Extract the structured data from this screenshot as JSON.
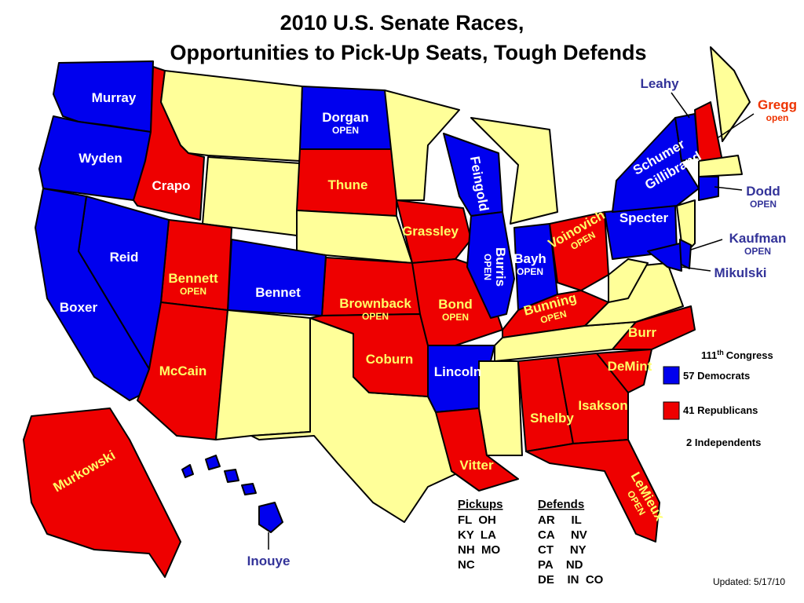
{
  "title": [
    "2010 U.S. Senate Races,",
    "Opportunities to Pick-Up Seats, Tough Defends"
  ],
  "labels": [
    {
      "text": "Murray"
    },
    {
      "text": "Wyden"
    },
    {
      "text": "Crapo"
    },
    {
      "text": "Reid"
    },
    {
      "text": "Boxer"
    },
    {
      "text": "Bennett",
      "sub": "OPEN"
    },
    {
      "text": "McCain"
    },
    {
      "text": "Bennet"
    },
    {
      "text": "Dorgan",
      "sub": "OPEN"
    },
    {
      "text": "Thune"
    },
    {
      "text": "Brownback",
      "sub": "OPEN"
    },
    {
      "text": "Coburn"
    },
    {
      "text": "Grassley"
    },
    {
      "text": "Bond",
      "sub": "OPEN"
    },
    {
      "text": "Lincoln"
    },
    {
      "text": "Vitter"
    },
    {
      "text": "Feingold"
    },
    {
      "text": "Burris",
      "sub": "OPEN"
    },
    {
      "text": "Bayh",
      "sub": "OPEN"
    },
    {
      "text": "Voinovich",
      "sub": "OPEN"
    },
    {
      "text": "Bunning",
      "sub": "OPEN"
    },
    {
      "text": "Shelby"
    },
    {
      "text": "Isakson"
    },
    {
      "text": "DeMint"
    },
    {
      "text": "Burr"
    },
    {
      "text": "LeMieux",
      "sub": "OPEN"
    },
    {
      "text": "Specter"
    },
    {
      "text": "Schumer"
    },
    {
      "text": "Gillibrand"
    },
    {
      "text": "Leahy"
    },
    {
      "text": "Gregg",
      "sub": "open"
    },
    {
      "text": "Dodd",
      "sub": "OPEN"
    },
    {
      "text": "Kaufman",
      "sub": "OPEN"
    },
    {
      "text": "Mikulski"
    },
    {
      "text": "Murkowski"
    },
    {
      "text": "Inouye"
    }
  ],
  "congress": {
    "number": "111",
    "sup": "th",
    "text": "Congress"
  },
  "legend": [
    "57 Democrats",
    "41 Republicans",
    "2 Independents"
  ],
  "pickups": {
    "header": "Pickups",
    "rows": [
      "FL  OH",
      "KY  LA",
      "NH  MO",
      "NC"
    ]
  },
  "defends": {
    "header": "Defends",
    "rows": [
      "AR     IL",
      "CA     NV",
      "CT     NY",
      "PA    ND",
      "DE    IN  CO"
    ]
  },
  "updated": "Updated: 5/17/10"
}
